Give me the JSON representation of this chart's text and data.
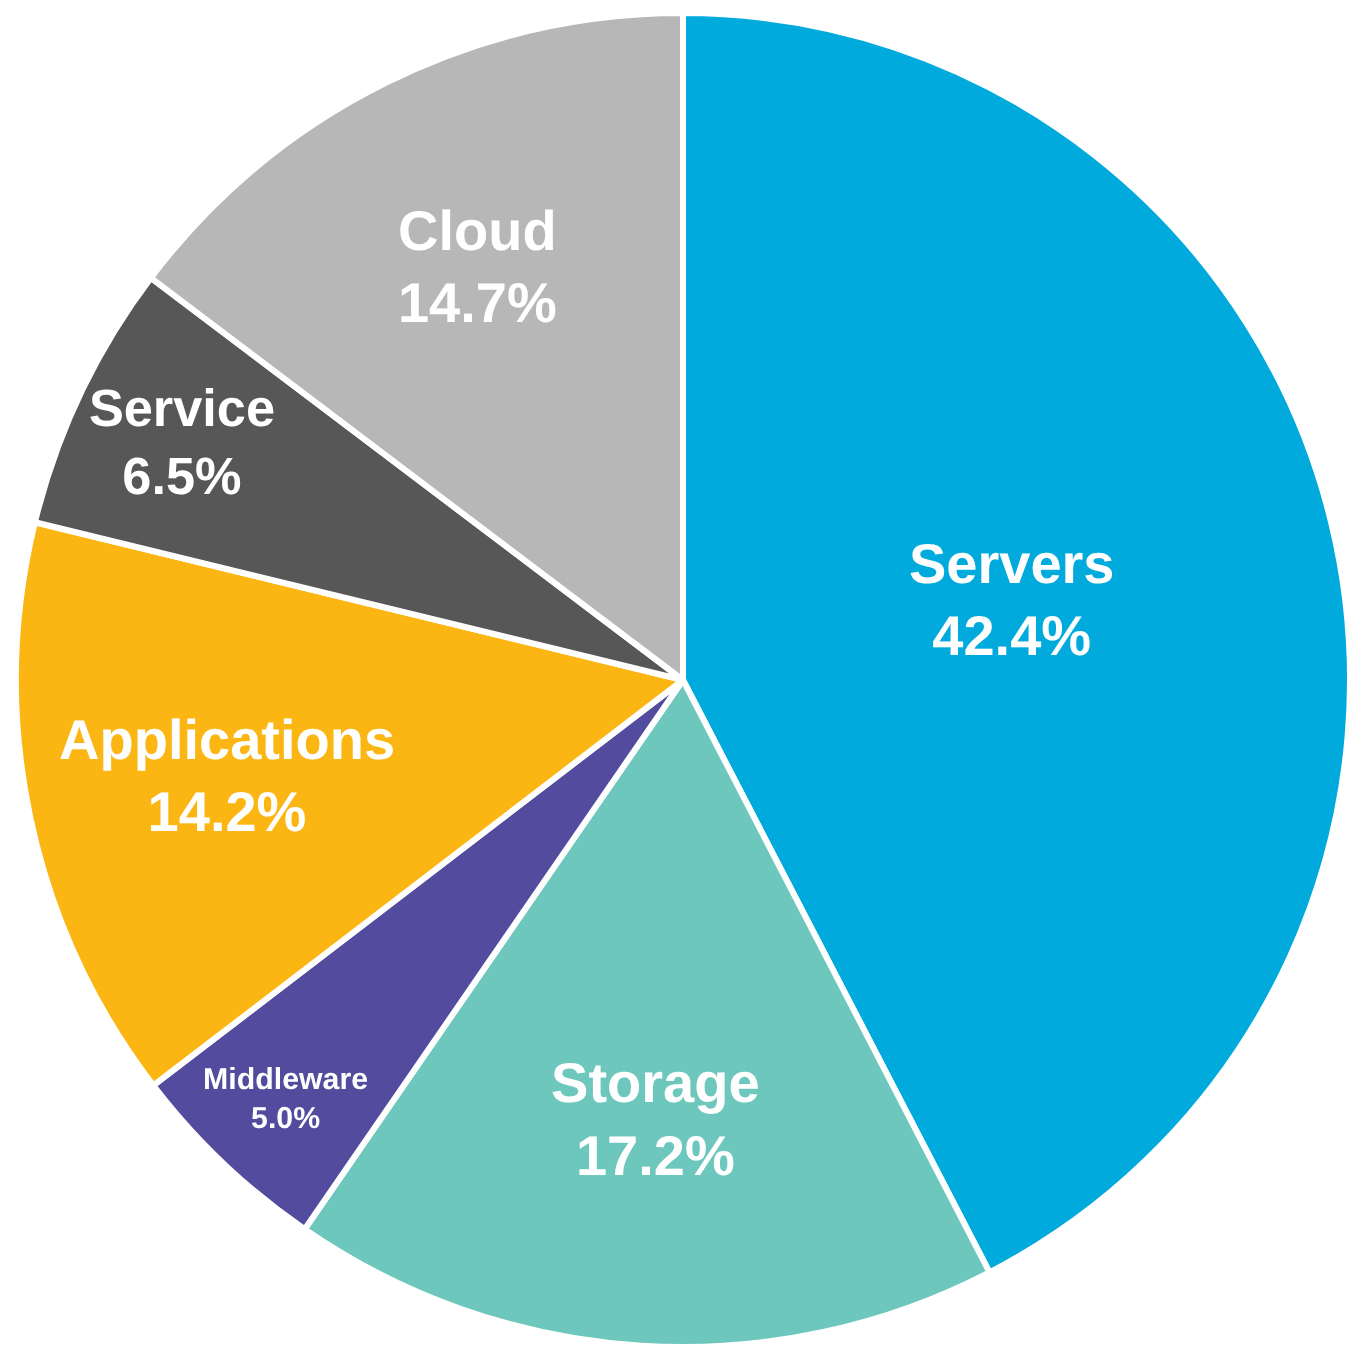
{
  "chart_data": {
    "type": "pie",
    "categories": [
      "Servers",
      "Storage",
      "Middleware",
      "Applications",
      "Service",
      "Cloud"
    ],
    "values": [
      42.4,
      17.2,
      5.0,
      14.2,
      6.5,
      14.7
    ],
    "value_labels": [
      "42.4%",
      "17.2%",
      "5.0%",
      "14.2%",
      "6.5%",
      "14.7%"
    ],
    "colors": [
      "#00aadc",
      "#6dc7bd",
      "#534c9e",
      "#fbb614",
      "#575757",
      "#b7b7b7"
    ],
    "legend": false
  }
}
